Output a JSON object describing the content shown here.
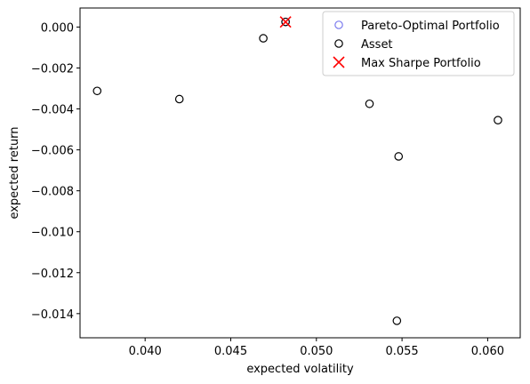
{
  "chart_data": {
    "type": "scatter",
    "xlabel": "expected volatility",
    "ylabel": "expected return",
    "xlim": [
      0.0362,
      0.0619
    ],
    "ylim": [
      -0.01518,
      0.00093
    ],
    "xticks": [
      0.04,
      0.045,
      0.05,
      0.055,
      0.06
    ],
    "xtick_labels": [
      "0.040",
      "0.045",
      "0.050",
      "0.055",
      "0.060"
    ],
    "yticks": [
      0.0,
      -0.002,
      -0.004,
      -0.006,
      -0.008,
      -0.01,
      -0.012,
      -0.014
    ],
    "ytick_labels": [
      "0.000",
      "−0.002",
      "−0.004",
      "−0.006",
      "−0.008",
      "−0.010",
      "−0.012",
      "−0.014"
    ],
    "grid": false,
    "legend_position": "top-right",
    "series": [
      {
        "name": "Pareto-Optimal Portfolio",
        "marker": "hollow-circle",
        "color": "#7b7bee",
        "x": [
          0.0482
        ],
        "y": [
          0.00025
        ]
      },
      {
        "name": "Asset",
        "marker": "hollow-circle",
        "color": "#000000",
        "x": [
          0.0372,
          0.042,
          0.0469,
          0.0482,
          0.0531,
          0.0548,
          0.0606,
          0.0547
        ],
        "y": [
          -0.00312,
          -0.00352,
          -0.00055,
          0.00025,
          -0.00375,
          -0.00632,
          -0.00455,
          -0.01435
        ]
      },
      {
        "name": "Max Sharpe Portfolio",
        "marker": "x",
        "color": "#ff0000",
        "x": [
          0.0482
        ],
        "y": [
          0.00025
        ]
      }
    ]
  }
}
